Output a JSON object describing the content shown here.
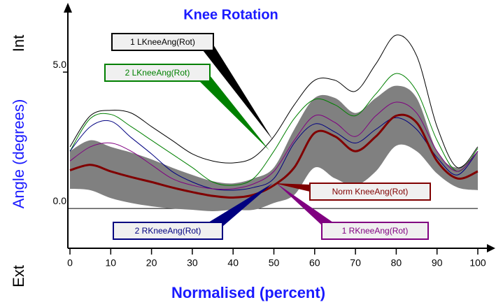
{
  "chart_data": {
    "type": "line",
    "title": "Knee Rotation",
    "xlabel": "Normalised (percent)",
    "ylabel": "Angle (degrees)",
    "ylabel_top": "Int",
    "ylabel_bottom": "Ext",
    "x": [
      0,
      5,
      10,
      15,
      20,
      25,
      30,
      35,
      40,
      45,
      50,
      55,
      60,
      65,
      70,
      75,
      80,
      85,
      90,
      95,
      100
    ],
    "xlim": [
      0,
      100
    ],
    "xticks": [
      0,
      10,
      20,
      30,
      40,
      50,
      60,
      70,
      80,
      90,
      100
    ],
    "ylim": [
      -1.46,
      7.26
    ],
    "yticks": [
      {
        "value": 0,
        "label": "0.0"
      },
      {
        "value": 5,
        "label": "5.0"
      }
    ],
    "band": {
      "color": "#808080",
      "upper": [
        2.1,
        2.5,
        2.26,
        2.05,
        1.8,
        1.5,
        1.23,
        1.0,
        0.92,
        1.1,
        1.5,
        2.9,
        4.05,
        4.05,
        3.5,
        4.05,
        4.5,
        4.05,
        2.1,
        1.5,
        2.1
      ],
      "lower": [
        0.72,
        0.67,
        0.38,
        0.2,
        0.08,
        0,
        -0.05,
        -0.1,
        -0.05,
        -0.05,
        0.2,
        0.5,
        1.5,
        1.1,
        0.85,
        1.36,
        2.3,
        2.1,
        1.28,
        0.77,
        0.67
      ]
    },
    "series": [
      {
        "name": "1 LKneeAng(Rot)",
        "color": "#000000",
        "values": [
          2.26,
          3.4,
          3.6,
          3.5,
          3.0,
          2.5,
          2.0,
          1.74,
          1.67,
          1.87,
          2.64,
          3.8,
          4.7,
          4.7,
          4.3,
          5.3,
          6.36,
          5.6,
          3.0,
          1.5,
          2.26
        ]
      },
      {
        "name": "2 LKneeAng(Rot)",
        "color": "#008000",
        "values": [
          2.1,
          3.3,
          3.45,
          3.0,
          2.5,
          2.0,
          1.5,
          0.97,
          0.85,
          1.1,
          2.1,
          3.3,
          4.0,
          3.8,
          3.4,
          4.2,
          4.95,
          4.3,
          2.5,
          1.36,
          2.2
        ]
      },
      {
        "name": "2 RKneeAng(Rot)",
        "color": "#000080",
        "values": [
          2.1,
          3.0,
          3.2,
          2.6,
          2.0,
          1.36,
          0.97,
          0.72,
          0.67,
          0.77,
          1.1,
          2.4,
          3.1,
          2.8,
          2.4,
          2.9,
          3.33,
          2.9,
          1.87,
          1.23,
          2.1
        ]
      },
      {
        "name": "1 RKneeAng(Rot)",
        "color": "#800080",
        "values": [
          1.74,
          2.26,
          2.4,
          2.1,
          1.6,
          1.1,
          0.85,
          0.72,
          0.72,
          0.9,
          1.36,
          2.5,
          3.4,
          3.15,
          2.64,
          3.4,
          3.9,
          3.5,
          2.1,
          1.36,
          2.1
        ]
      },
      {
        "name": "Norm KneeAng(Rot)",
        "color": "#800000",
        "values": [
          1.4,
          1.6,
          1.36,
          1.15,
          0.97,
          0.77,
          0.6,
          0.46,
          0.4,
          0.5,
          0.85,
          1.5,
          2.77,
          2.64,
          2.1,
          2.64,
          3.4,
          3.15,
          1.74,
          1.1,
          1.36
        ]
      }
    ]
  }
}
